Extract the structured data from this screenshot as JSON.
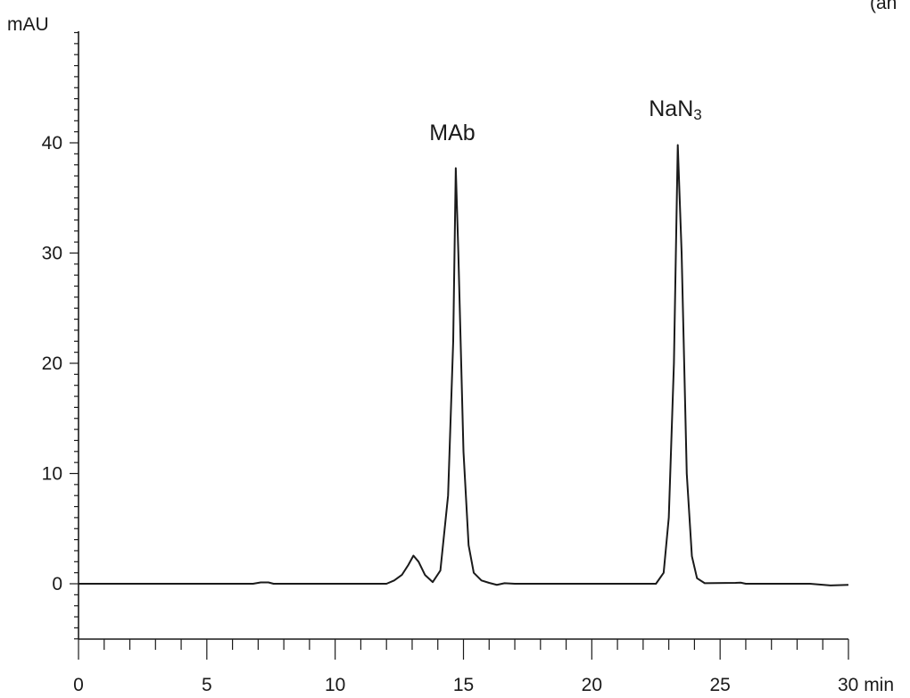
{
  "chart_data": {
    "type": "line",
    "title": "",
    "corner_note": "(an",
    "xlabel": "min",
    "ylabel": "mAU",
    "xlim": [
      0,
      30
    ],
    "ylim": [
      -5,
      50
    ],
    "x_ticks": [
      0,
      5,
      10,
      15,
      20,
      25,
      30
    ],
    "y_ticks": [
      0,
      10,
      20,
      30,
      40
    ],
    "x_tick_labels": [
      "0",
      "5",
      "10",
      "15",
      "20",
      "25",
      "30 min"
    ],
    "y_tick_labels": [
      "0",
      "10",
      "20",
      "30",
      "40"
    ],
    "grid": false,
    "legend": "none",
    "line_color": "#1a1a1a",
    "series": [
      {
        "x": [
          0,
          6.8,
          7.1,
          7.4,
          7.6,
          12.0,
          12.3,
          12.6,
          12.85,
          13.05,
          13.25,
          13.5,
          13.8,
          14.1,
          14.4,
          14.6,
          14.7,
          14.8,
          15.0,
          15.2,
          15.4,
          15.7,
          16.0,
          16.3,
          16.6,
          17.0,
          22.5,
          22.8,
          23.0,
          23.2,
          23.35,
          23.5,
          23.7,
          23.9,
          24.1,
          24.4,
          25.6,
          25.8,
          26.0,
          28.5,
          29.3,
          30.0
        ],
        "y": [
          0,
          0,
          0.12,
          0.12,
          0,
          0,
          0.3,
          0.8,
          1.7,
          2.55,
          2.0,
          0.8,
          0.15,
          1.2,
          8.0,
          22.0,
          37.7,
          30.0,
          12.0,
          3.5,
          1.0,
          0.3,
          0.08,
          -0.1,
          0.05,
          0,
          0,
          1.0,
          6.0,
          20.0,
          39.8,
          30.0,
          10.0,
          2.5,
          0.5,
          0.05,
          0.08,
          0.1,
          0,
          0,
          -0.15,
          -0.1
        ]
      }
    ],
    "annotations": [
      {
        "text": "MAb",
        "x": 14.7,
        "y": 37.7
      },
      {
        "text": "NaN",
        "subscript": "3",
        "x": 23.35,
        "y": 39.8
      }
    ]
  }
}
